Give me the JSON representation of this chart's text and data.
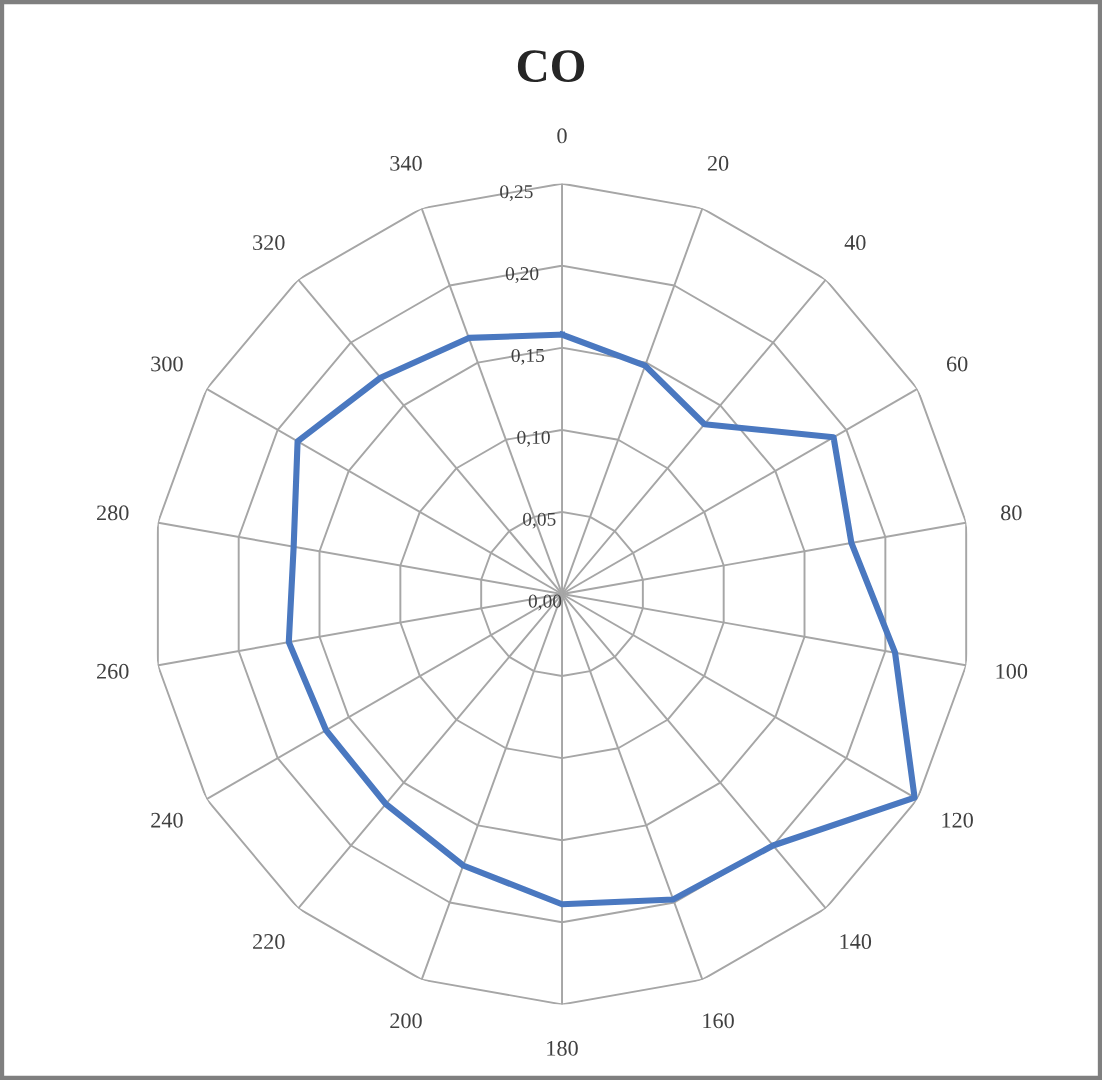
{
  "chart_data": {
    "type": "radar",
    "title": "CO",
    "categories": [
      "0",
      "20",
      "40",
      "60",
      "80",
      "100",
      "120",
      "140",
      "160",
      "180",
      "200",
      "220",
      "240",
      "260",
      "280",
      "300",
      "320",
      "340"
    ],
    "series": [
      {
        "color": "#4a78c0",
        "values": [
          0.158,
          0.148,
          0.135,
          0.191,
          0.179,
          0.206,
          0.248,
          0.2,
          0.198,
          0.189,
          0.176,
          0.167,
          0.166,
          0.169,
          0.166,
          0.186,
          0.172,
          0.166
        ]
      }
    ],
    "ylim": [
      0,
      0.25
    ],
    "yticks": [
      {
        "value": 0,
        "label": "0,00"
      },
      {
        "value": 0.05,
        "label": "0,05"
      },
      {
        "value": 0.1,
        "label": "0,10"
      },
      {
        "value": 0.15,
        "label": "0,15"
      },
      {
        "value": 0.2,
        "label": "0,20"
      },
      {
        "value": 0.25,
        "label": "0,25"
      }
    ],
    "grid": true,
    "marker": "none",
    "line_style": "solid"
  }
}
